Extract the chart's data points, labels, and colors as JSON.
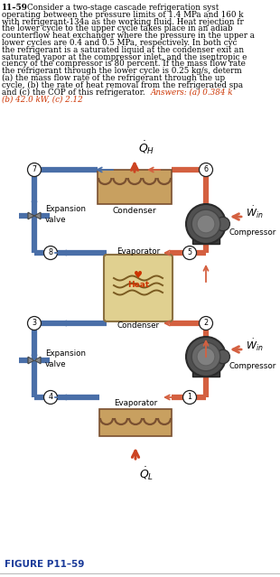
{
  "bg_color": "#ffffff",
  "orange": "#d46040",
  "blue": "#4a6fa8",
  "red_arrow": "#cc4422",
  "node_circle_fc": "#ffffff",
  "node_circle_ec": "#222222",
  "comp_dark": "#4a4a4a",
  "comp_mid": "#6a6a6a",
  "comp_light": "#888888",
  "hx_fill": "#d4c090",
  "hx_edge": "#8b7040",
  "coil_fill": "#c8a060",
  "coil_edge": "#7a5030",
  "ans_color": "#cc3300",
  "fig_label_color": "#1a3a99",
  "text_lines": [
    [
      "11–59",
      true,
      false
    ],
    [
      "Consider a two-stage cascade refrigeration syst",
      false,
      false
    ],
    [
      "operating between the pressure limits of 1.4 MPa and 160 k",
      false,
      false
    ],
    [
      "with refrigerant-134a as the working fluid. Heat rejection fr",
      false,
      false
    ],
    [
      "the lower cycle to the upper cycle takes place in an adiab",
      false,
      false
    ],
    [
      "counterflow heat exchanger where the pressure in the upper a",
      false,
      false
    ],
    [
      "lower cycles are 0.4 and 0.5 MPa, respectively. In both cyc",
      false,
      false
    ],
    [
      "the refrigerant is a saturated liquid at the condenser exit an",
      false,
      false
    ],
    [
      "saturated vapor at the compressor inlet, and the isentropic e",
      false,
      false
    ],
    [
      "ciency of the compressor is 80 percent. If the mass flow rate",
      false,
      false
    ],
    [
      "the refrigerant through the lower cycle is 0.25 kg/s, determ",
      false,
      false
    ],
    [
      "(a) the mass flow rate of the refrigerant through the up",
      false,
      false
    ],
    [
      "cycle, (b) the rate of heat removal from the refrigerated spa",
      false,
      false
    ],
    [
      "and (c) the COP of this refrigerator.",
      false,
      false
    ]
  ],
  "answers_inline": "Answers: (a) 0.384 k",
  "answers_line2": "(b) 42.0 kW, (c) 2.12",
  "figure_label": "FIGURE P11–59"
}
